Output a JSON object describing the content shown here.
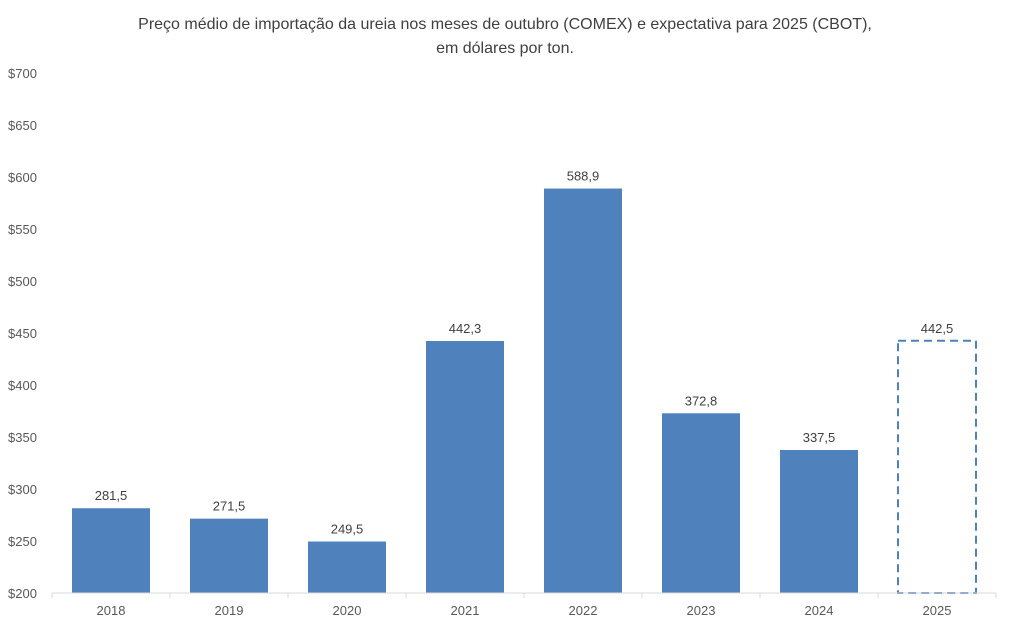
{
  "chart_data": {
    "type": "bar",
    "title": "Preço médio de importação da ureia nos meses de outubro (COMEX) e expectativa para 2025 (CBOT),",
    "subtitle": "em dólares por ton.",
    "categories": [
      "2018",
      "2019",
      "2020",
      "2021",
      "2022",
      "2023",
      "2024",
      "2025"
    ],
    "values": [
      281.5,
      271.5,
      249.5,
      442.3,
      588.9,
      372.8,
      337.5,
      442.5
    ],
    "data_labels": [
      "281,5",
      "271,5",
      "249,5",
      "442,3",
      "588,9",
      "372,8",
      "337,5",
      "442,5"
    ],
    "projected": [
      false,
      false,
      false,
      false,
      false,
      false,
      false,
      true
    ],
    "ylim": [
      200,
      700
    ],
    "yticks": [
      200,
      250,
      300,
      350,
      400,
      450,
      500,
      550,
      600,
      650,
      700
    ],
    "ytick_labels": [
      "$200",
      "$250",
      "$300",
      "$350",
      "$400",
      "$450",
      "$500",
      "$550",
      "$600",
      "$650",
      "$700"
    ],
    "xlabel": "",
    "ylabel": "",
    "grid": false,
    "legend": "none",
    "colors": {
      "bar": "#4f81bd",
      "axis": "#d9d9d9"
    }
  }
}
